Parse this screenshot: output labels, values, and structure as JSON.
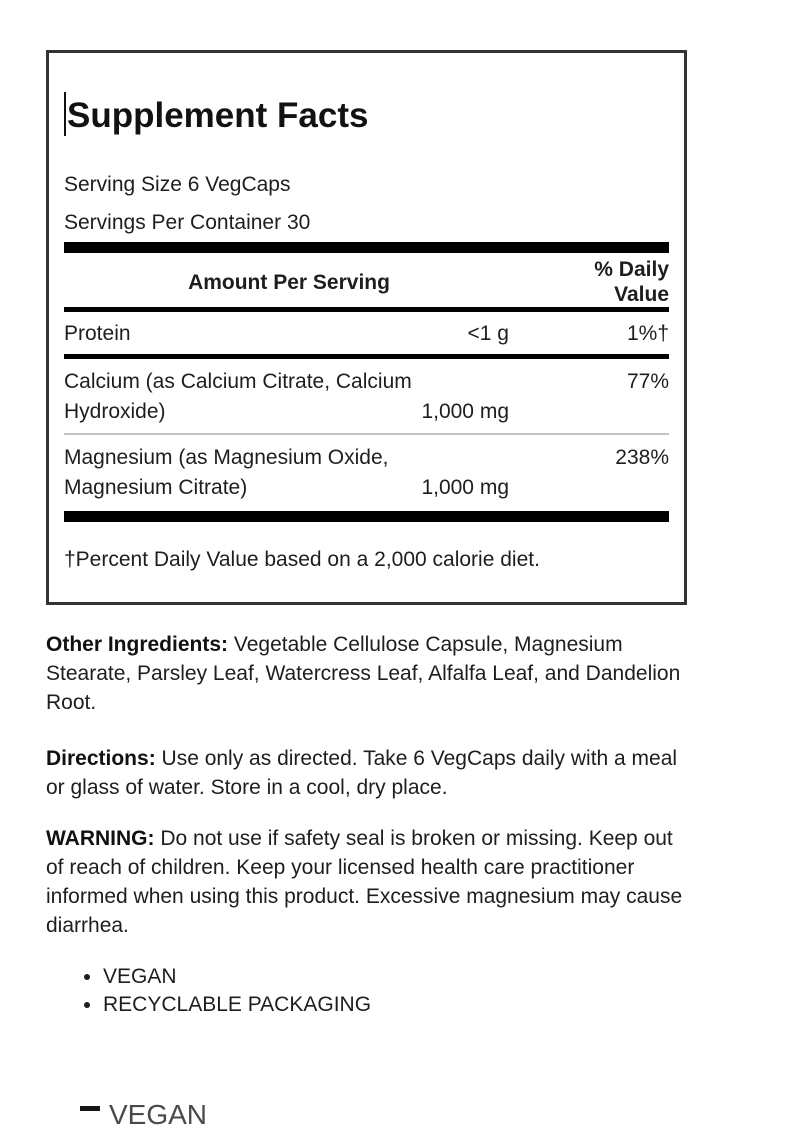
{
  "panel": {
    "title": "Supplement Facts",
    "serving_size": "Serving Size 6 VegCaps",
    "servings_per_container": "Servings Per Container 30",
    "header": {
      "amount_per_serving": "Amount Per Serving",
      "daily_value_line1": "% Daily",
      "daily_value_line2": "Value"
    },
    "rows": [
      {
        "name": "Protein",
        "amount": "<1 g",
        "dv": "1%†"
      },
      {
        "name_line1": "Calcium (as Calcium Citrate, Calcium",
        "name_line2": "Hydroxide)",
        "amount": "1,000 mg",
        "dv": "77%"
      },
      {
        "name_line1": "Magnesium (as Magnesium Oxide,",
        "name_line2": "Magnesium Citrate)",
        "amount": "1,000 mg",
        "dv": "238%"
      }
    ],
    "footnote": "†Percent Daily Value based on a 2,000 calorie diet."
  },
  "sections": {
    "other_ingredients_label": "Other Ingredients:",
    "other_ingredients_text": " Vegetable Cellulose Capsule, Magnesium Stearate, Parsley Leaf, Watercress Leaf, Alfalfa Leaf, and Dandelion Root.",
    "directions_label": "Directions:",
    "directions_text": " Use only as directed. Take 6 VegCaps daily with a meal or glass of water. Store in a cool, dry place.",
    "warning_label": "WARNING:",
    "warning_text": " Do not use if safety seal is broken or missing. Keep out of reach of children. Keep your licensed health care practitioner informed when using this product. Excessive magnesium may cause diarrhea."
  },
  "features": [
    "VEGAN",
    "RECYCLABLE PACKAGING"
  ],
  "bottom_clipped_text": "VEGAN",
  "colors": {
    "text": "#1e1e1e",
    "rule_heavy": "#000000",
    "rule_light": "#c4c4c4",
    "panel_border": "#333333"
  }
}
